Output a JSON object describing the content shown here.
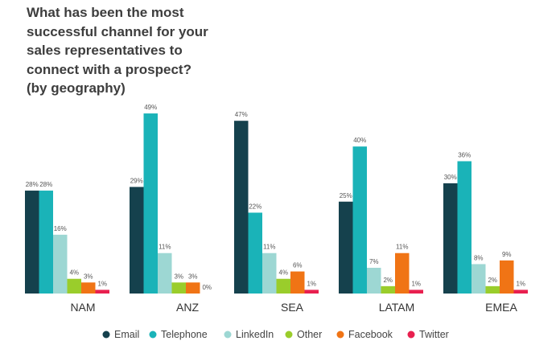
{
  "chart_data": {
    "type": "bar",
    "title_lines": [
      "What has been the most",
      "successful channel for your",
      "sales representatives to",
      "connect with a prospect?",
      "(by geography)"
    ],
    "categories": [
      "NAM",
      "ANZ",
      "SEA",
      "LATAM",
      "EMEA"
    ],
    "series": [
      {
        "name": "Email",
        "color": "#15414d",
        "values": [
          28,
          29,
          47,
          25,
          30
        ]
      },
      {
        "name": "Telephone",
        "color": "#1ab3b8",
        "values": [
          28,
          49,
          22,
          40,
          36
        ]
      },
      {
        "name": "LinkedIn",
        "color": "#9dd7d3",
        "values": [
          16,
          11,
          11,
          7,
          8
        ]
      },
      {
        "name": "Other",
        "color": "#9acd2b",
        "values": [
          4,
          3,
          4,
          2,
          2
        ]
      },
      {
        "name": "Facebook",
        "color": "#f07415",
        "values": [
          3,
          3,
          6,
          11,
          9
        ]
      },
      {
        "name": "Twitter",
        "color": "#e8204f",
        "values": [
          1,
          0,
          1,
          1,
          1
        ]
      }
    ],
    "value_suffix": "%",
    "ylim": [
      0,
      50
    ],
    "grid": false,
    "legend_position": "bottom"
  }
}
